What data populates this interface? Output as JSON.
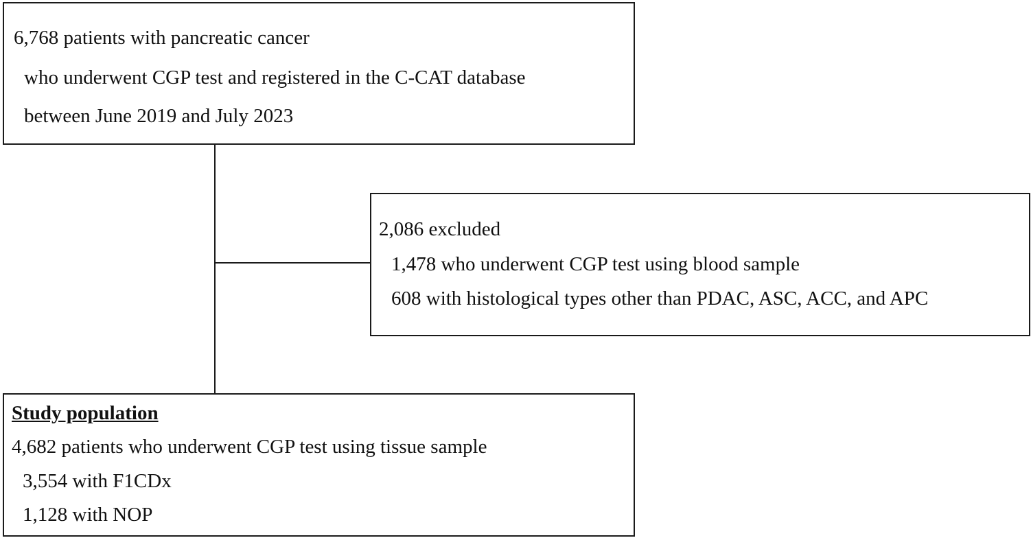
{
  "top_box": {
    "line1": "6,768 patients with pancreatic cancer",
    "line2": "who underwent CGP test and registered in the C-CAT database",
    "line3": "between June 2019 and July 2023"
  },
  "excluded_box": {
    "line1": "2,086 excluded",
    "line2": "1,478 who underwent CGP test using blood sample",
    "line3": "608 with histological types other than PDAC, ASC, ACC, and APC"
  },
  "study_box": {
    "heading": "Study population",
    "line1": "4,682 patients who underwent CGP test using tissue sample",
    "line2": "3,554 with F1CDx",
    "line3": "1,128 with NOP"
  }
}
